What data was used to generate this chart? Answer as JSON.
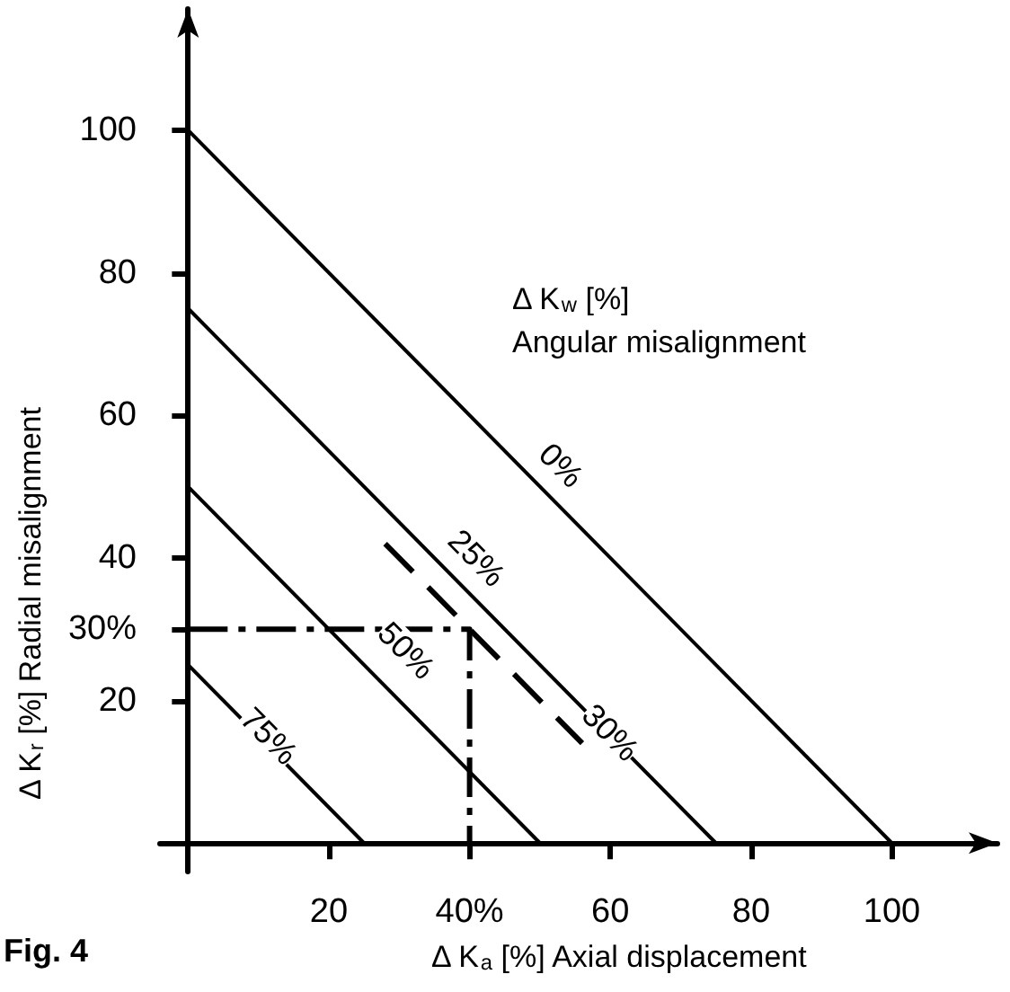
{
  "chart_data": {
    "type": "line",
    "xlabel": "Δ K$_{a}$ [%] Axial displacement",
    "ylabel": "Δ K$_{r}$ [%] Radial misalignment",
    "xlim": [
      -4,
      115
    ],
    "ylim": [
      -4,
      117
    ],
    "xticks": [
      20,
      {
        "value": 40,
        "label": "40%"
      },
      60,
      80,
      100
    ],
    "yticks": [
      20,
      {
        "value": 30,
        "label": "30%"
      },
      40,
      60,
      80,
      100
    ],
    "marker": "none",
    "series": [
      {
        "color": "#000000",
        "x": [
          0,
          100
        ],
        "values": [
          100,
          0
        ]
      },
      {
        "color": "#000000",
        "x": [
          0,
          75
        ],
        "values": [
          75,
          0
        ]
      },
      {
        "color": "#000000",
        "x": [
          0,
          50
        ],
        "values": [
          50,
          0
        ]
      },
      {
        "color": "#000000",
        "x": [
          0,
          25
        ],
        "values": [
          25,
          0
        ]
      },
      {
        "color": "#000000",
        "x": [
          28,
          56
        ],
        "values": [
          42,
          14
        ],
        "line_style": "dashed"
      },
      {
        "color": "#000000",
        "x": [
          0,
          40,
          40
        ],
        "values": [
          30,
          30,
          0
        ],
        "line_style": "dotted"
      }
    ],
    "annotations": [
      {
        "text": "0%",
        "x": 53,
        "y": 53
      },
      {
        "text": "25%",
        "x": 41,
        "y": 40
      },
      {
        "text": "50%",
        "x": 31,
        "y": 27
      },
      {
        "text": "75%",
        "x": 11.5,
        "y": 15
      },
      {
        "text": "30%",
        "x": 60,
        "y": 15.5
      },
      "Δ K$_{w}$ [%]",
      "Angular misalignment",
      "Fig. 4"
    ]
  }
}
